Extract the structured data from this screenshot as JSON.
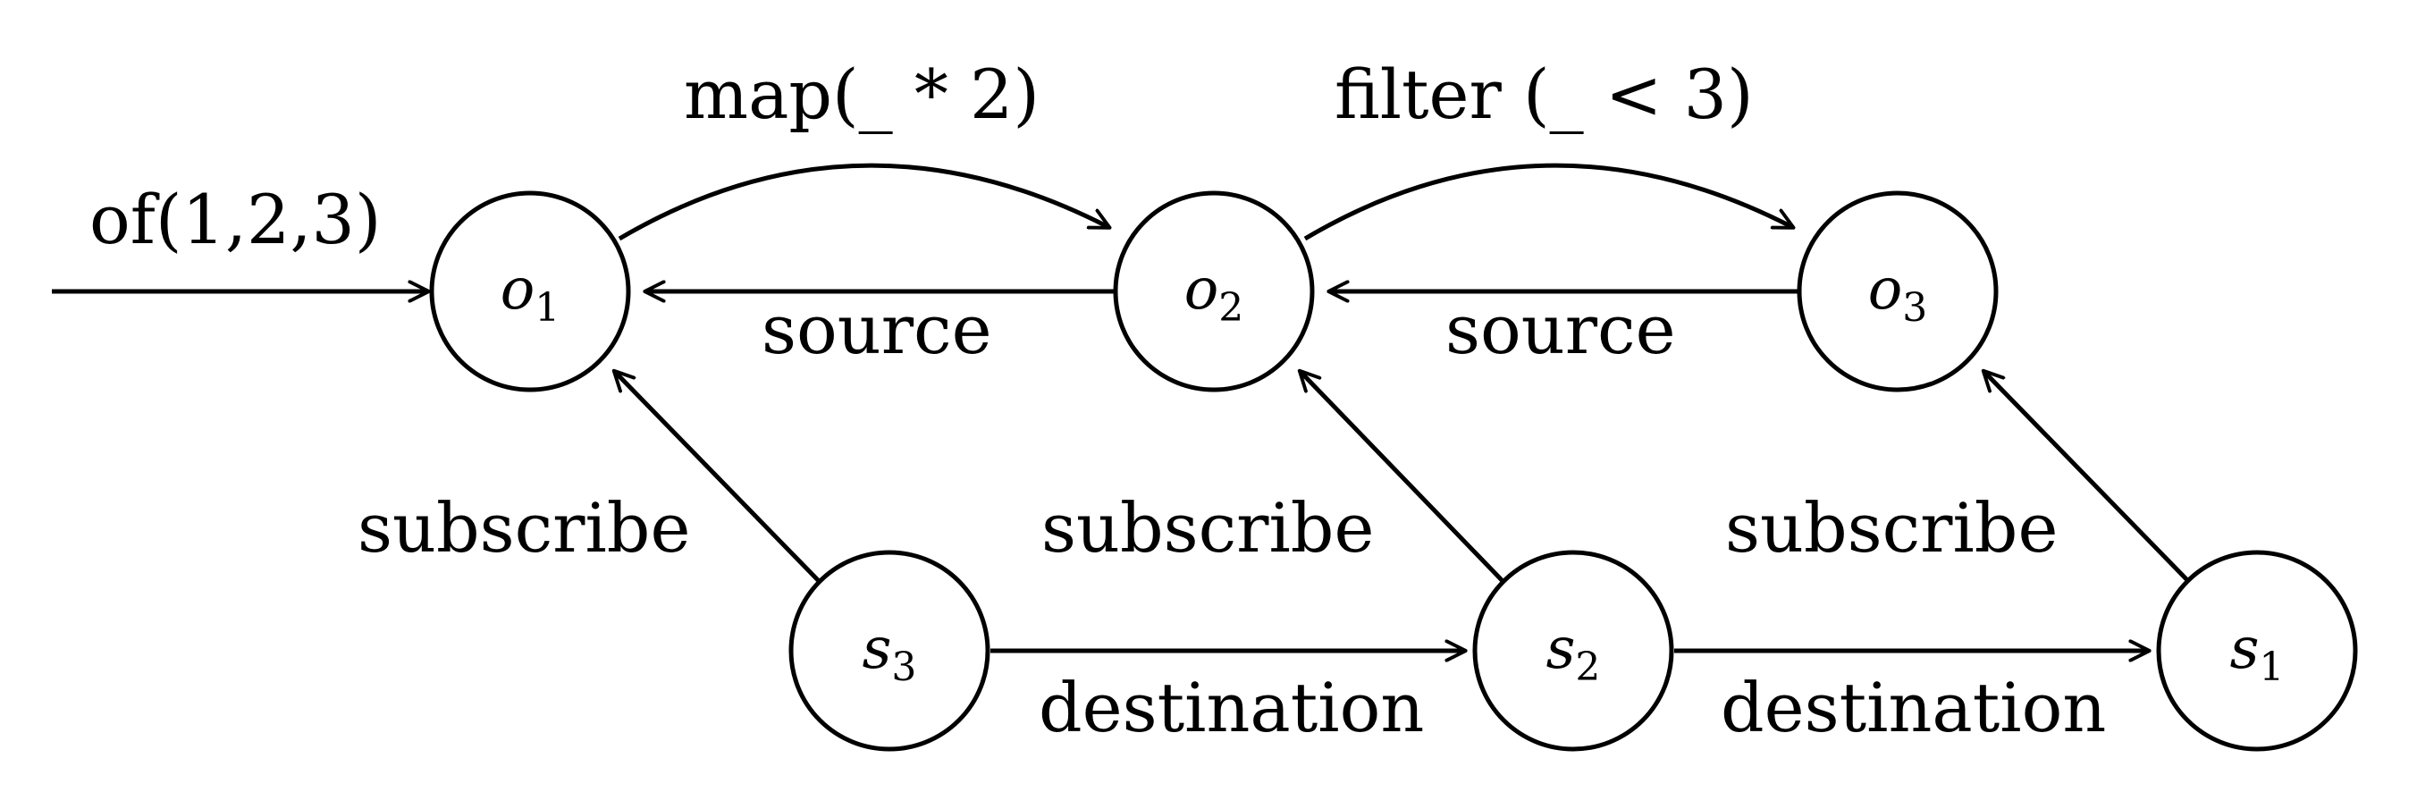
{
  "diagram": {
    "nodes": [
      {
        "id": "o1",
        "base": "o",
        "sub": "1"
      },
      {
        "id": "o2",
        "base": "o",
        "sub": "2"
      },
      {
        "id": "o3",
        "base": "o",
        "sub": "3"
      },
      {
        "id": "s3",
        "base": "s",
        "sub": "3"
      },
      {
        "id": "s2",
        "base": "s",
        "sub": "2"
      },
      {
        "id": "s1",
        "base": "s",
        "sub": "1"
      }
    ],
    "edges": [
      {
        "id": "input",
        "from": "",
        "to": "o1",
        "label": "of(1,2,3)"
      },
      {
        "id": "map",
        "from": "o1",
        "to": "o2",
        "label": "map(_ * 2)"
      },
      {
        "id": "filter",
        "from": "o2",
        "to": "o3",
        "label": "filter (_ < 3)"
      },
      {
        "id": "source-o2-o1",
        "from": "o2",
        "to": "o1",
        "label": "source"
      },
      {
        "id": "source-o3-o2",
        "from": "o3",
        "to": "o2",
        "label": "source"
      },
      {
        "id": "subscribe-s3-o1",
        "from": "s3",
        "to": "o1",
        "label": "subscribe"
      },
      {
        "id": "subscribe-s2-o2",
        "from": "s2",
        "to": "o2",
        "label": "subscribe"
      },
      {
        "id": "subscribe-s1-o3",
        "from": "s1",
        "to": "o3",
        "label": "subscribe"
      },
      {
        "id": "destination-s3-s2",
        "from": "s3",
        "to": "s2",
        "label": "destination"
      },
      {
        "id": "destination-s2-s1",
        "from": "s2",
        "to": "s1",
        "label": "destination"
      }
    ]
  }
}
